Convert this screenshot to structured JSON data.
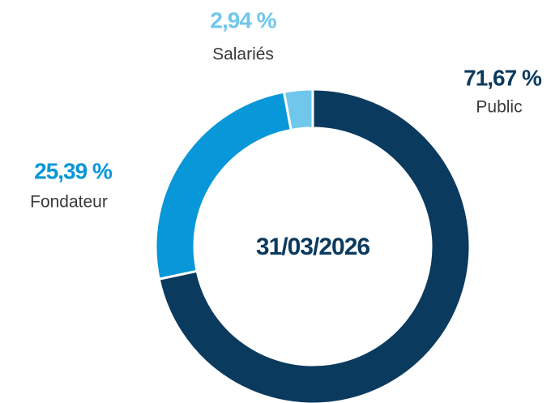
{
  "chart_data": {
    "type": "donut",
    "categories": [
      "Public",
      "Fondateur",
      "Salariés"
    ],
    "values": [
      71.67,
      25.39,
      2.94
    ],
    "value_labels": [
      "71,67 %",
      "25,39 %",
      "2,94 %"
    ],
    "colors": [
      "#0b3a5f",
      "#0897d8",
      "#6fc7ec"
    ],
    "center_label": "31/03/2026"
  }
}
